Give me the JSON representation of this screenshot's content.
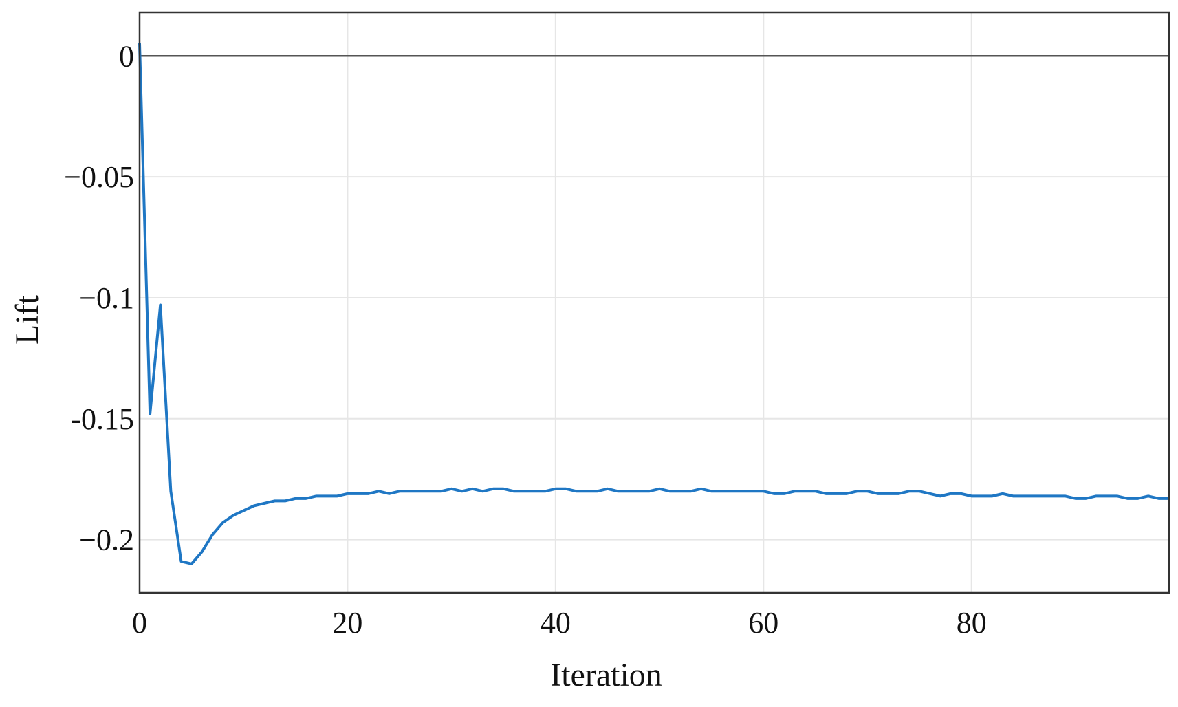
{
  "chart_data": {
    "type": "line",
    "xlabel": "Iteration",
    "ylabel": "Lift",
    "xlim": [
      0,
      99
    ],
    "ylim": [
      -0.222,
      0.018
    ],
    "x_ticks": [
      {
        "value": 0,
        "label": "0"
      },
      {
        "value": 20,
        "label": "20"
      },
      {
        "value": 40,
        "label": "40"
      },
      {
        "value": 60,
        "label": "60"
      },
      {
        "value": 80,
        "label": "80"
      }
    ],
    "y_ticks": [
      {
        "value": 0,
        "label": "0"
      },
      {
        "value": -0.05,
        "label": "−0.05"
      },
      {
        "value": -0.1,
        "label": "−0.1"
      },
      {
        "value": -0.15,
        "label": "-0.15"
      },
      {
        "value": -0.2,
        "label": "−0.2"
      }
    ],
    "grid": true,
    "reference_line": {
      "y": 0,
      "color": "#555555"
    },
    "series": [
      {
        "color": "#1f77c4",
        "x": [
          0,
          1,
          2,
          3,
          4,
          5,
          6,
          7,
          8,
          9,
          10,
          11,
          12,
          13,
          14,
          15,
          16,
          17,
          18,
          19,
          20,
          21,
          22,
          23,
          24,
          25,
          26,
          27,
          28,
          29,
          30,
          31,
          32,
          33,
          34,
          35,
          36,
          37,
          38,
          39,
          40,
          41,
          42,
          43,
          44,
          45,
          46,
          47,
          48,
          49,
          50,
          51,
          52,
          53,
          54,
          55,
          56,
          57,
          58,
          59,
          60,
          61,
          62,
          63,
          64,
          65,
          66,
          67,
          68,
          69,
          70,
          71,
          72,
          73,
          74,
          75,
          76,
          77,
          78,
          79,
          80,
          81,
          82,
          83,
          84,
          85,
          86,
          87,
          88,
          89,
          90,
          91,
          92,
          93,
          94,
          95,
          96,
          97,
          98,
          99
        ],
        "y": [
          0.005,
          -0.148,
          -0.103,
          -0.18,
          -0.209,
          -0.21,
          -0.205,
          -0.198,
          -0.193,
          -0.19,
          -0.188,
          -0.186,
          -0.185,
          -0.184,
          -0.184,
          -0.183,
          -0.183,
          -0.182,
          -0.182,
          -0.182,
          -0.181,
          -0.181,
          -0.181,
          -0.18,
          -0.181,
          -0.18,
          -0.18,
          -0.18,
          -0.18,
          -0.18,
          -0.179,
          -0.18,
          -0.179,
          -0.18,
          -0.179,
          -0.179,
          -0.18,
          -0.18,
          -0.18,
          -0.18,
          -0.179,
          -0.179,
          -0.18,
          -0.18,
          -0.18,
          -0.179,
          -0.18,
          -0.18,
          -0.18,
          -0.18,
          -0.179,
          -0.18,
          -0.18,
          -0.18,
          -0.179,
          -0.18,
          -0.18,
          -0.18,
          -0.18,
          -0.18,
          -0.18,
          -0.181,
          -0.181,
          -0.18,
          -0.18,
          -0.18,
          -0.181,
          -0.181,
          -0.181,
          -0.18,
          -0.18,
          -0.181,
          -0.181,
          -0.181,
          -0.18,
          -0.18,
          -0.181,
          -0.182,
          -0.181,
          -0.181,
          -0.182,
          -0.182,
          -0.182,
          -0.181,
          -0.182,
          -0.182,
          -0.182,
          -0.182,
          -0.182,
          -0.182,
          -0.183,
          -0.183,
          -0.182,
          -0.182,
          -0.182,
          -0.183,
          -0.183,
          -0.182,
          -0.183,
          -0.183
        ]
      }
    ]
  }
}
